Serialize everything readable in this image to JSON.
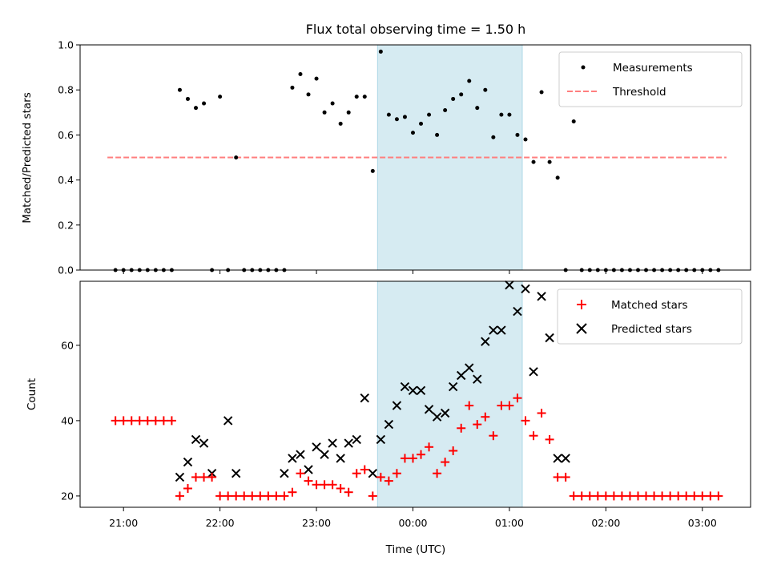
{
  "chart_data": [
    {
      "type": "scatter",
      "title": "Flux total observing time = 1.50 h",
      "ylabel": "Matched/Predicted stars",
      "xlabel": "",
      "ylim": [
        0,
        1.0
      ],
      "yticks": [
        "0.0",
        "0.2",
        "0.4",
        "0.6",
        "0.8",
        "1.0"
      ],
      "legend_position": "top-right",
      "highlight_span": [
        "23:38",
        "01:08"
      ],
      "highlight_color": "#add8e6",
      "series": [
        {
          "name": "Measurements",
          "kind": "points",
          "color": "#000000",
          "x": [
            "20:55",
            "21:00",
            "21:05",
            "21:10",
            "21:15",
            "21:20",
            "21:25",
            "21:30",
            "21:35",
            "21:40",
            "21:45",
            "21:50",
            "21:55",
            "22:00",
            "22:05",
            "22:10",
            "22:15",
            "22:20",
            "22:25",
            "22:30",
            "22:35",
            "22:40",
            "22:45",
            "22:50",
            "22:55",
            "23:00",
            "23:05",
            "23:10",
            "23:15",
            "23:20",
            "23:25",
            "23:30",
            "23:35",
            "23:40",
            "23:45",
            "23:50",
            "23:55",
            "00:00",
            "00:05",
            "00:10",
            "00:15",
            "00:20",
            "00:25",
            "00:30",
            "00:35",
            "00:40",
            "00:45",
            "00:50",
            "00:55",
            "01:00",
            "01:05",
            "01:10",
            "01:15",
            "01:20",
            "01:25",
            "01:30",
            "01:35",
            "01:40",
            "01:45",
            "01:50",
            "01:55",
            "02:00",
            "02:05",
            "02:10",
            "02:15",
            "02:20",
            "02:25",
            "02:30",
            "02:35",
            "02:40",
            "02:45",
            "02:50",
            "02:55",
            "03:00",
            "03:05",
            "03:10"
          ],
          "y": [
            0,
            0,
            0,
            0,
            0,
            0,
            0,
            0,
            0.8,
            0.76,
            0.72,
            0.74,
            0,
            0.77,
            0,
            0.5,
            0,
            0,
            0,
            0,
            0,
            0,
            0.81,
            0.87,
            0.78,
            0.85,
            0.7,
            0.74,
            0.65,
            0.7,
            0.77,
            0.77,
            0.44,
            0.97,
            0.69,
            0.67,
            0.68,
            0.61,
            0.65,
            0.69,
            0.6,
            0.71,
            0.76,
            0.78,
            0.84,
            0.72,
            0.8,
            0.59,
            0.69,
            0.69,
            0.6,
            0.58,
            0.48,
            0.79,
            0.48,
            0.41,
            0,
            0.66,
            0,
            0,
            0,
            0,
            0,
            0,
            0,
            0,
            0,
            0,
            0,
            0,
            0,
            0,
            0,
            0,
            0,
            0
          ]
        },
        {
          "name": "Threshold",
          "kind": "dashed-line",
          "color": "#ff7f7f",
          "x": [
            "20:50",
            "03:15"
          ],
          "y": [
            0.5,
            0.5
          ]
        }
      ]
    },
    {
      "type": "scatter",
      "title": "",
      "ylabel": "Count",
      "xlabel": "Time (UTC)",
      "ylim": [
        17,
        77
      ],
      "yticks": [
        "20",
        "40",
        "60"
      ],
      "xticks": [
        "21:00",
        "22:00",
        "23:00",
        "00:00",
        "01:00",
        "02:00",
        "03:00"
      ],
      "legend_position": "top-right",
      "highlight_span": [
        "23:38",
        "01:08"
      ],
      "highlight_color": "#add8e6",
      "series": [
        {
          "name": "Matched stars",
          "marker": "plus",
          "color": "#ff0000",
          "x": [
            "20:55",
            "21:00",
            "21:05",
            "21:10",
            "21:15",
            "21:20",
            "21:25",
            "21:30",
            "21:35",
            "21:40",
            "21:45",
            "21:50",
            "21:55",
            "22:00",
            "22:05",
            "22:10",
            "22:15",
            "22:20",
            "22:25",
            "22:30",
            "22:35",
            "22:40",
            "22:45",
            "22:50",
            "22:55",
            "23:00",
            "23:05",
            "23:10",
            "23:15",
            "23:20",
            "23:25",
            "23:30",
            "23:35",
            "23:40",
            "23:45",
            "23:50",
            "23:55",
            "00:00",
            "00:05",
            "00:10",
            "00:15",
            "00:20",
            "00:25",
            "00:30",
            "00:35",
            "00:40",
            "00:45",
            "00:50",
            "00:55",
            "01:00",
            "01:05",
            "01:10",
            "01:15",
            "01:20",
            "01:25",
            "01:30",
            "01:35",
            "01:40",
            "01:45",
            "01:50",
            "01:55",
            "02:00",
            "02:05",
            "02:10",
            "02:15",
            "02:20",
            "02:25",
            "02:30",
            "02:35",
            "02:40",
            "02:45",
            "02:50",
            "02:55",
            "03:00",
            "03:05",
            "03:10"
          ],
          "y": [
            40,
            40,
            40,
            40,
            40,
            40,
            40,
            40,
            20,
            22,
            25,
            25,
            25,
            20,
            20,
            20,
            20,
            20,
            20,
            20,
            20,
            20,
            21,
            26,
            24,
            23,
            23,
            23,
            22,
            21,
            26,
            27,
            20,
            25,
            24,
            26,
            30,
            30,
            31,
            33,
            26,
            29,
            32,
            38,
            44,
            39,
            41,
            36,
            44,
            44,
            46,
            40,
            36,
            42,
            35,
            25,
            25,
            20,
            20,
            20,
            20,
            20,
            20,
            20,
            20,
            20,
            20,
            20,
            20,
            20,
            20,
            20,
            20,
            20,
            20,
            20
          ]
        },
        {
          "name": "Predicted stars",
          "marker": "x",
          "color": "#000000",
          "x": [
            "21:35",
            "21:40",
            "21:45",
            "21:50",
            "21:55",
            "22:05",
            "22:10",
            "22:40",
            "22:45",
            "22:50",
            "22:55",
            "23:00",
            "23:05",
            "23:10",
            "23:15",
            "23:20",
            "23:25",
            "23:30",
            "23:35",
            "23:40",
            "23:45",
            "23:50",
            "23:55",
            "00:00",
            "00:05",
            "00:10",
            "00:15",
            "00:20",
            "00:25",
            "00:30",
            "00:35",
            "00:40",
            "00:45",
            "00:50",
            "00:55",
            "01:00",
            "01:05",
            "01:10",
            "01:15",
            "01:20",
            "01:25",
            "01:30",
            "01:35"
          ],
          "y": [
            25,
            29,
            35,
            34,
            26,
            40,
            26,
            26,
            30,
            31,
            27,
            33,
            31,
            34,
            30,
            34,
            35,
            46,
            26,
            35,
            39,
            44,
            49,
            48,
            48,
            43,
            41,
            42,
            49,
            52,
            54,
            51,
            61,
            64,
            64,
            76,
            69,
            75,
            53,
            73,
            62,
            30,
            30
          ]
        }
      ]
    }
  ]
}
